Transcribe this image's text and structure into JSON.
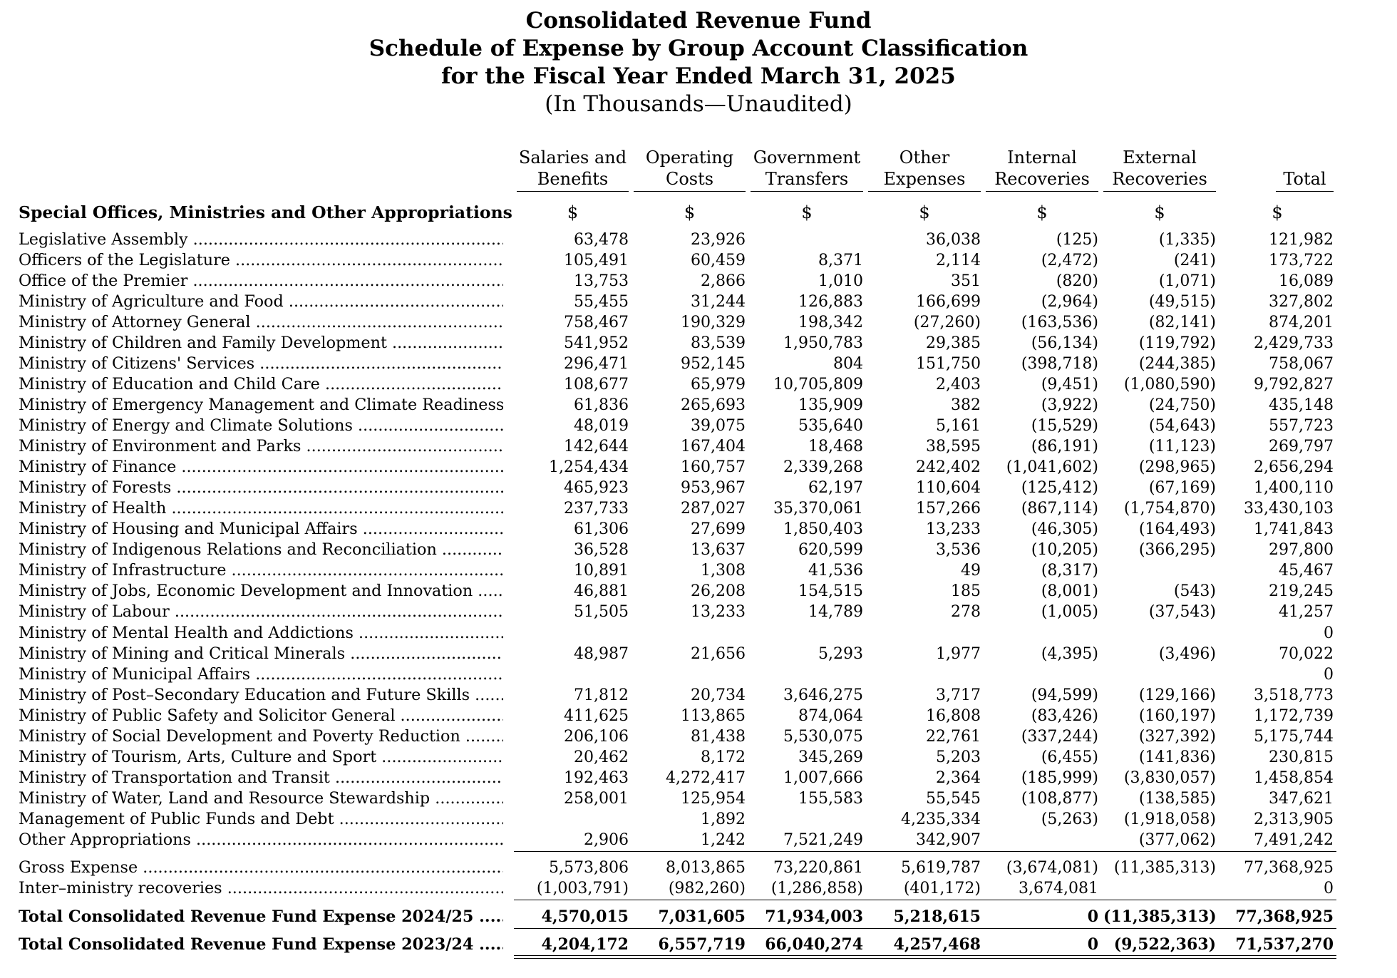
{
  "title": {
    "line1": "Consolidated Revenue Fund",
    "line2": "Schedule of Expense by Group Account Classification",
    "line3": "for the Fiscal Year Ended March 31, 2025",
    "line4": "(In Thousands—Unaudited)"
  },
  "section_title": "Special Offices, Ministries and Other Appropriations",
  "columns": [
    {
      "line1": "Salaries and",
      "line2": "Benefits",
      "unit": "$"
    },
    {
      "line1": "Operating",
      "line2": "Costs",
      "unit": "$"
    },
    {
      "line1": "Government",
      "line2": "Transfers",
      "unit": "$"
    },
    {
      "line1": "Other",
      "line2": "Expenses",
      "unit": "$"
    },
    {
      "line1": "Internal",
      "line2": "Recoveries",
      "unit": "$"
    },
    {
      "line1": "External",
      "line2": "Recoveries",
      "unit": "$"
    },
    {
      "line1": "",
      "line2": "Total",
      "unit": "$"
    }
  ],
  "rows": [
    {
      "label": "Legislative Assembly",
      "values": [
        "63,478",
        "23,926",
        "",
        "36,038",
        "(125)",
        "(1,335)",
        "121,982"
      ]
    },
    {
      "label": "Officers of the Legislature",
      "values": [
        "105,491",
        "60,459",
        "8,371",
        "2,114",
        "(2,472)",
        "(241)",
        "173,722"
      ]
    },
    {
      "label": "Office of the Premier",
      "values": [
        "13,753",
        "2,866",
        "1,010",
        "351",
        "(820)",
        "(1,071)",
        "16,089"
      ]
    },
    {
      "label": "Ministry of Agriculture and Food",
      "values": [
        "55,455",
        "31,244",
        "126,883",
        "166,699",
        "(2,964)",
        "(49,515)",
        "327,802"
      ]
    },
    {
      "label": "Ministry of Attorney General",
      "values": [
        "758,467",
        "190,329",
        "198,342",
        "(27,260)",
        "(163,536)",
        "(82,141)",
        "874,201"
      ]
    },
    {
      "label": "Ministry of Children and Family Development",
      "values": [
        "541,952",
        "83,539",
        "1,950,783",
        "29,385",
        "(56,134)",
        "(119,792)",
        "2,429,733"
      ]
    },
    {
      "label": "Ministry of Citizens' Services",
      "values": [
        "296,471",
        "952,145",
        "804",
        "151,750",
        "(398,718)",
        "(244,385)",
        "758,067"
      ]
    },
    {
      "label": "Ministry of Education and Child Care",
      "values": [
        "108,677",
        "65,979",
        "10,705,809",
        "2,403",
        "(9,451)",
        "(1,080,590)",
        "9,792,827"
      ]
    },
    {
      "label": "Ministry of Emergency Management and Climate Readiness",
      "values": [
        "61,836",
        "265,693",
        "135,909",
        "382",
        "(3,922)",
        "(24,750)",
        "435,148"
      ]
    },
    {
      "label": "Ministry of Energy and Climate Solutions",
      "values": [
        "48,019",
        "39,075",
        "535,640",
        "5,161",
        "(15,529)",
        "(54,643)",
        "557,723"
      ]
    },
    {
      "label": "Ministry of Environment and Parks",
      "values": [
        "142,644",
        "167,404",
        "18,468",
        "38,595",
        "(86,191)",
        "(11,123)",
        "269,797"
      ]
    },
    {
      "label": "Ministry of Finance",
      "values": [
        "1,254,434",
        "160,757",
        "2,339,268",
        "242,402",
        "(1,041,602)",
        "(298,965)",
        "2,656,294"
      ]
    },
    {
      "label": "Ministry of Forests",
      "values": [
        "465,923",
        "953,967",
        "62,197",
        "110,604",
        "(125,412)",
        "(67,169)",
        "1,400,110"
      ]
    },
    {
      "label": "Ministry of Health",
      "values": [
        "237,733",
        "287,027",
        "35,370,061",
        "157,266",
        "(867,114)",
        "(1,754,870)",
        "33,430,103"
      ]
    },
    {
      "label": "Ministry of Housing and Municipal Affairs",
      "values": [
        "61,306",
        "27,699",
        "1,850,403",
        "13,233",
        "(46,305)",
        "(164,493)",
        "1,741,843"
      ]
    },
    {
      "label": "Ministry of Indigenous Relations and Reconciliation",
      "values": [
        "36,528",
        "13,637",
        "620,599",
        "3,536",
        "(10,205)",
        "(366,295)",
        "297,800"
      ]
    },
    {
      "label": "Ministry of Infrastructure",
      "values": [
        "10,891",
        "1,308",
        "41,536",
        "49",
        "(8,317)",
        "",
        "45,467"
      ]
    },
    {
      "label": "Ministry of Jobs, Economic Development and Innovation",
      "values": [
        "46,881",
        "26,208",
        "154,515",
        "185",
        "(8,001)",
        "(543)",
        "219,245"
      ]
    },
    {
      "label": "Ministry of Labour",
      "values": [
        "51,505",
        "13,233",
        "14,789",
        "278",
        "(1,005)",
        "(37,543)",
        "41,257"
      ]
    },
    {
      "label": "Ministry of Mental Health and Addictions",
      "values": [
        "",
        "",
        "",
        "",
        "",
        "",
        "0"
      ]
    },
    {
      "label": "Ministry of Mining and Critical Minerals",
      "values": [
        "48,987",
        "21,656",
        "5,293",
        "1,977",
        "(4,395)",
        "(3,496)",
        "70,022"
      ]
    },
    {
      "label": "Ministry of Municipal Affairs",
      "values": [
        "",
        "",
        "",
        "",
        "",
        "",
        "0"
      ]
    },
    {
      "label": "Ministry of Post–Secondary Education and Future Skills",
      "values": [
        "71,812",
        "20,734",
        "3,646,275",
        "3,717",
        "(94,599)",
        "(129,166)",
        "3,518,773"
      ]
    },
    {
      "label": "Ministry of Public Safety and Solicitor General",
      "values": [
        "411,625",
        "113,865",
        "874,064",
        "16,808",
        "(83,426)",
        "(160,197)",
        "1,172,739"
      ]
    },
    {
      "label": "Ministry of Social Development and Poverty Reduction",
      "values": [
        "206,106",
        "81,438",
        "5,530,075",
        "22,761",
        "(337,244)",
        "(327,392)",
        "5,175,744"
      ]
    },
    {
      "label": "Ministry of Tourism, Arts, Culture and Sport",
      "values": [
        "20,462",
        "8,172",
        "345,269",
        "5,203",
        "(6,455)",
        "(141,836)",
        "230,815"
      ]
    },
    {
      "label": "Ministry of Transportation and Transit",
      "values": [
        "192,463",
        "4,272,417",
        "1,007,666",
        "2,364",
        "(185,999)",
        "(3,830,057)",
        "1,458,854"
      ]
    },
    {
      "label": "Ministry of Water, Land and Resource Stewardship",
      "values": [
        "258,001",
        "125,954",
        "155,583",
        "55,545",
        "(108,877)",
        "(138,585)",
        "347,621"
      ]
    },
    {
      "label": "Management of Public Funds and Debt",
      "values": [
        "",
        "1,892",
        "",
        "4,235,334",
        "(5,263)",
        "(1,918,058)",
        "2,313,905"
      ]
    },
    {
      "label": "Other Appropriations",
      "values": [
        "2,906",
        "1,242",
        "7,521,249",
        "342,907",
        "",
        "(377,062)",
        "7,491,242"
      ]
    }
  ],
  "summary_rows": [
    {
      "label": "Gross Expense",
      "values": [
        "5,573,806",
        "8,013,865",
        "73,220,861",
        "5,619,787",
        "(3,674,081)",
        "(11,385,313)",
        "77,368,925"
      ]
    },
    {
      "label": "Inter–ministry recoveries",
      "values": [
        "(1,003,791)",
        "(982,260)",
        "(1,286,858)",
        "(401,172)",
        "3,674,081",
        "",
        "0"
      ]
    }
  ],
  "total_rows": [
    {
      "label": "Total Consolidated Revenue Fund Expense 2024/25",
      "values": [
        "4,570,015",
        "7,031,605",
        "71,934,003",
        "5,218,615",
        "0",
        "(11,385,313)",
        "77,368,925"
      ]
    },
    {
      "label": "Total Consolidated Revenue Fund Expense 2023/24",
      "values": [
        "4,204,172",
        "6,557,719",
        "66,040,274",
        "4,257,468",
        "0",
        "(9,522,363)",
        "71,537,270"
      ]
    }
  ]
}
